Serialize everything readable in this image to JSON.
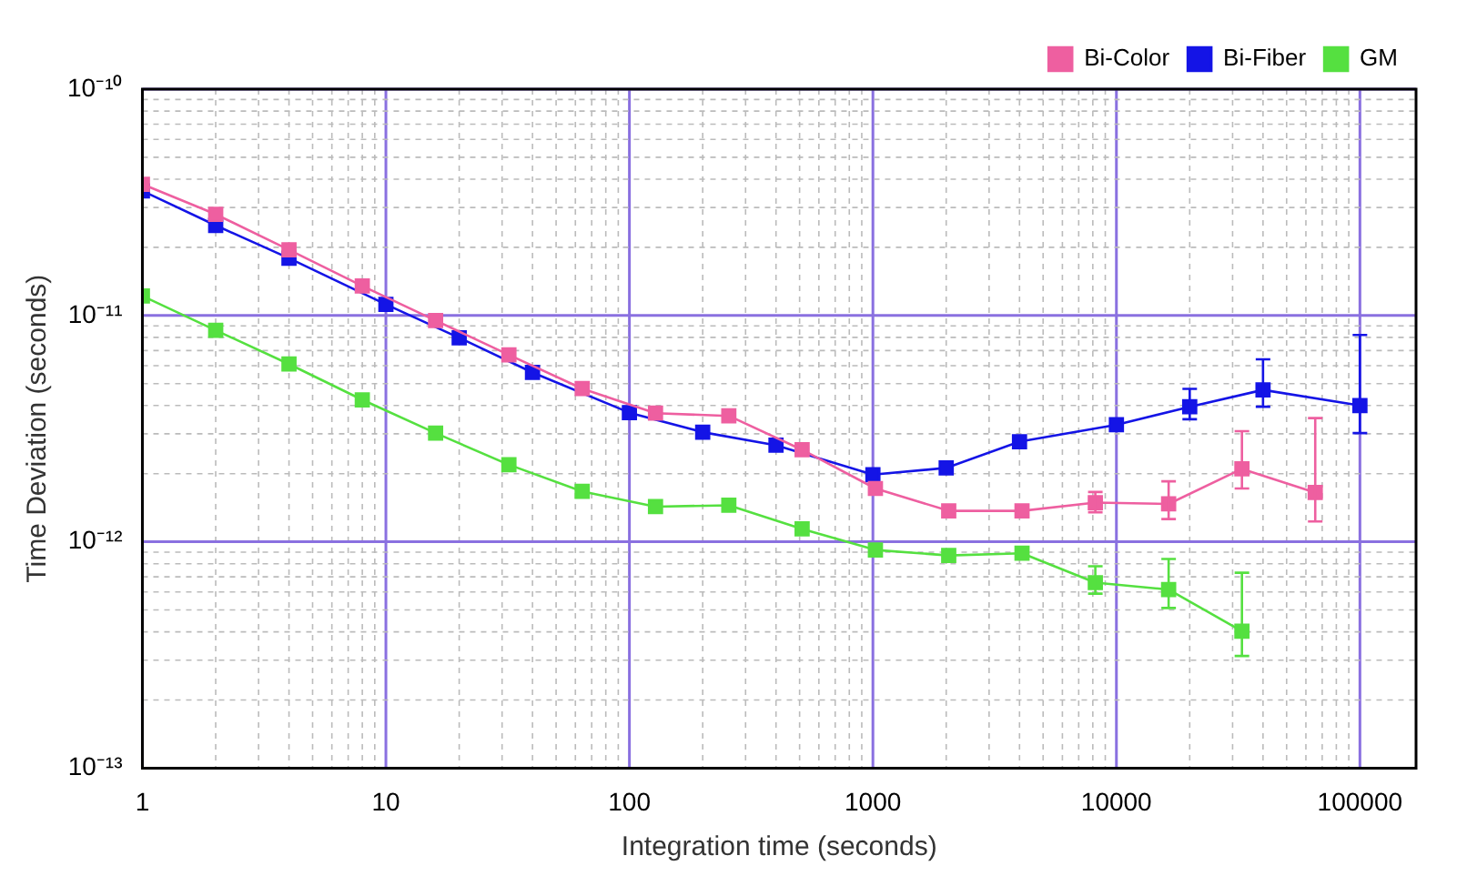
{
  "chart_data": {
    "type": "line",
    "xlabel": "Integration time (seconds)",
    "ylabel": "Time Deviation (seconds)",
    "log": "xy",
    "grid": true,
    "legend": "top right",
    "marker": "square",
    "line_style": "solid",
    "xlim": [
      1,
      170000
    ],
    "ylim": [
      1e-13,
      1e-10
    ],
    "xticks": [
      1,
      {
        "value": 2,
        "label": null
      },
      {
        "value": 3,
        "label": null
      },
      {
        "value": 4,
        "label": null
      },
      {
        "value": 5,
        "label": null
      },
      {
        "value": 6,
        "label": null
      },
      {
        "value": 7,
        "label": null
      },
      {
        "value": 8,
        "label": null
      },
      {
        "value": 9,
        "label": null
      },
      10,
      {
        "value": 20,
        "label": null
      },
      {
        "value": 30,
        "label": null
      },
      {
        "value": 40,
        "label": null
      },
      {
        "value": 50,
        "label": null
      },
      {
        "value": 60,
        "label": null
      },
      {
        "value": 70,
        "label": null
      },
      {
        "value": 80,
        "label": null
      },
      {
        "value": 90,
        "label": null
      },
      100,
      {
        "value": 200,
        "label": null
      },
      {
        "value": 300,
        "label": null
      },
      {
        "value": 400,
        "label": null
      },
      {
        "value": 500,
        "label": null
      },
      {
        "value": 600,
        "label": null
      },
      {
        "value": 700,
        "label": null
      },
      {
        "value": 800,
        "label": null
      },
      {
        "value": 900,
        "label": null
      },
      1000,
      {
        "value": 2000,
        "label": null
      },
      {
        "value": 3000,
        "label": null
      },
      {
        "value": 4000,
        "label": null
      },
      {
        "value": 5000,
        "label": null
      },
      {
        "value": 6000,
        "label": null
      },
      {
        "value": 7000,
        "label": null
      },
      {
        "value": 8000,
        "label": null
      },
      {
        "value": 9000,
        "label": null
      },
      10000,
      {
        "value": 20000,
        "label": null
      },
      {
        "value": 30000,
        "label": null
      },
      {
        "value": 40000,
        "label": null
      },
      {
        "value": 50000,
        "label": null
      },
      {
        "value": 60000,
        "label": null
      },
      {
        "value": 70000,
        "label": null
      },
      {
        "value": 80000,
        "label": null
      },
      {
        "value": 90000,
        "label": null
      },
      100000
    ],
    "yticks": [
      {
        "value": 1e-13,
        "label": "10⁻¹³"
      },
      {
        "value": 2e-13,
        "label": null
      },
      {
        "value": 3e-13,
        "label": null
      },
      {
        "value": 4e-13,
        "label": null
      },
      {
        "value": 5e-13,
        "label": null
      },
      {
        "value": 6e-13,
        "label": null
      },
      {
        "value": 7e-13,
        "label": null
      },
      {
        "value": 8e-13,
        "label": null
      },
      {
        "value": 9e-13,
        "label": null
      },
      {
        "value": 1e-12,
        "label": "10⁻¹²"
      },
      {
        "value": 2e-12,
        "label": null
      },
      {
        "value": 3e-12,
        "label": null
      },
      {
        "value": 4e-12,
        "label": null
      },
      {
        "value": 5e-12,
        "label": null
      },
      {
        "value": 6e-12,
        "label": null
      },
      {
        "value": 7e-12,
        "label": null
      },
      {
        "value": 8e-12,
        "label": null
      },
      {
        "value": 9e-12,
        "label": null
      },
      {
        "value": 1e-11,
        "label": "10⁻¹¹"
      },
      {
        "value": 2e-11,
        "label": null
      },
      {
        "value": 3e-11,
        "label": null
      },
      {
        "value": 4e-11,
        "label": null
      },
      {
        "value": 5e-11,
        "label": null
      },
      {
        "value": 6e-11,
        "label": null
      },
      {
        "value": 7e-11,
        "label": null
      },
      {
        "value": 8e-11,
        "label": null
      },
      {
        "value": 9e-11,
        "label": null
      },
      {
        "value": 1e-10,
        "label": "10⁻¹⁰"
      }
    ],
    "series": [
      {
        "name": "Bi-Color",
        "color": "#ee5fa0",
        "x": [
          1,
          2,
          4,
          8,
          16,
          32,
          64,
          128,
          256,
          512,
          1024,
          2048,
          4096,
          8192,
          16384,
          32768,
          65536
        ],
        "values": [
          3.8e-11,
          2.8e-11,
          1.95e-11,
          1.35e-11,
          9.5e-12,
          6.7e-12,
          4.75e-12,
          3.7e-12,
          3.6e-12,
          2.55e-12,
          1.72e-12,
          1.37e-12,
          1.37e-12,
          1.49e-12,
          1.47e-12,
          2.1e-12,
          1.65e-12
        ],
        "errors": [
          null,
          null,
          null,
          null,
          null,
          null,
          null,
          null,
          null,
          null,
          null,
          null,
          null,
          [
            1.35e-12,
            1.66e-12
          ],
          [
            1.26e-12,
            1.85e-12
          ],
          [
            1.72e-12,
            3.08e-12
          ],
          [
            1.23e-12,
            3.52e-12
          ]
        ]
      },
      {
        "name": "Bi-Fiber",
        "color": "#1414e6",
        "x": [
          1,
          2,
          4,
          10,
          20,
          40,
          100,
          200,
          400,
          1000,
          2000,
          4000,
          10000,
          20000,
          40000,
          100000
        ],
        "values": [
          3.55e-11,
          2.5e-11,
          1.79e-11,
          1.12e-11,
          7.97e-12,
          5.6e-12,
          3.72e-12,
          3.05e-12,
          2.67e-12,
          1.98e-12,
          2.12e-12,
          2.77e-12,
          3.29e-12,
          3.95e-12,
          4.69e-12,
          4e-12
        ],
        "errors": [
          null,
          null,
          null,
          null,
          null,
          null,
          null,
          null,
          null,
          null,
          null,
          null,
          null,
          [
            3.48e-12,
            4.74e-12
          ],
          [
            3.95e-12,
            6.4e-12
          ],
          [
            3.02e-12,
            8.2e-12
          ]
        ]
      },
      {
        "name": "GM",
        "color": "#55e040",
        "x": [
          1,
          2,
          4,
          8,
          16,
          32,
          64,
          128,
          256,
          512,
          1024,
          2048,
          4096,
          8192,
          16384,
          32768
        ],
        "values": [
          1.22e-11,
          8.6e-12,
          6.1e-12,
          4.24e-12,
          3.02e-12,
          2.19e-12,
          1.67e-12,
          1.43e-12,
          1.45e-12,
          1.14e-12,
          9.2e-13,
          8.7e-13,
          8.9e-13,
          6.6e-13,
          6.15e-13,
          4.03e-13
        ],
        "errors": [
          null,
          null,
          null,
          null,
          null,
          null,
          null,
          null,
          null,
          null,
          null,
          null,
          null,
          [
            5.9e-13,
            7.8e-13
          ],
          [
            5.1e-13,
            8.4e-13
          ],
          [
            3.13e-13,
            7.3e-13
          ]
        ]
      }
    ]
  }
}
